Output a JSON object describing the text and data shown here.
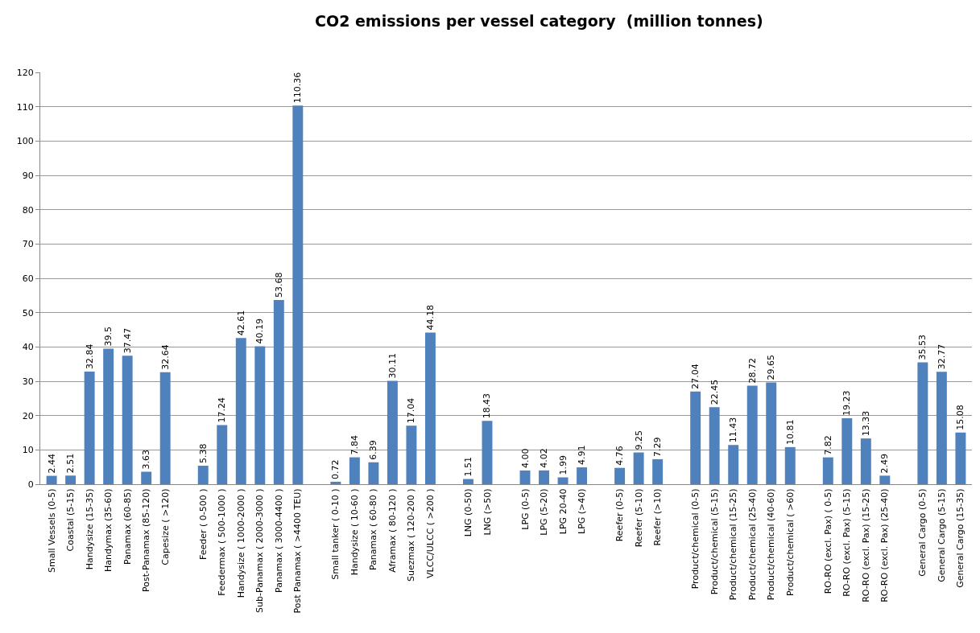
{
  "chart_data": {
    "type": "bar",
    "title": "CO2 emissions per vessel category  (million tonnes)",
    "categories": [
      "Small Vessels (0-5)",
      "Coastal (5-15)",
      "Handysize (15-35)",
      "Handymax (35-60)",
      "Panamax (60-85)",
      "Post-Panamax (85-120)",
      "Capesize ( >120)",
      null,
      "Feeder ( 0-500 )",
      "Feedermax ( 500-1000 )",
      "Handysize ( 1000-2000 )",
      "Sub-Panamax ( 2000-3000 )",
      "Panamax ( 3000-4400 )",
      "Post Panamax ( >4400 TEU)",
      null,
      "Small tanker ( 0-10 )",
      "Handysize ( 10-60 )",
      "Panamax ( 60-80 )",
      "Aframax ( 80-120 )",
      "Suezmax ( 120-200 )",
      "VLCC/ULCC ( >200 )",
      null,
      "LNG (0-50)",
      "LNG (>50)",
      null,
      "LPG (0-5)",
      "LPG (5-20)",
      "LPG 20-40",
      "LPG (>40)",
      null,
      "Reefer (0-5)",
      "Reefer (5-10)",
      "Reefer (>10)",
      null,
      "Product/chemical (0-5)",
      "Product/chemical (5-15)",
      "Product/chemical (15-25)",
      "Product/chemical (25-40)",
      "Product/chemical (40-60)",
      "Product/chemical ( >60)",
      null,
      "RO-RO (excl. Pax) ( 0-5)",
      "RO-RO (excl. Pax) (5-15)",
      "RO-RO (excl. Pax) (15-25)",
      "RO-RO (excl. Pax) (25-40)",
      null,
      "General Cargo (0-5)",
      "General Cargo (5-15)",
      "General Cargo (15-35)"
    ],
    "values": [
      2.44,
      2.51,
      32.84,
      39.5,
      37.47,
      3.63,
      32.64,
      null,
      5.38,
      17.24,
      42.61,
      40.19,
      53.68,
      110.36,
      null,
      0.72,
      7.84,
      6.39,
      30.11,
      17.04,
      44.18,
      null,
      1.51,
      18.43,
      null,
      4.0,
      4.02,
      1.99,
      4.91,
      null,
      4.76,
      9.25,
      7.29,
      null,
      27.04,
      22.45,
      11.43,
      28.72,
      29.65,
      10.81,
      null,
      7.82,
      19.23,
      13.33,
      2.49,
      null,
      35.53,
      32.77,
      15.08
    ],
    "value_labels": [
      "2.44",
      "2.51",
      "32.84",
      "39.5",
      "37.47",
      "3.63",
      "32.64",
      null,
      "5.38",
      "17.24",
      "42.61",
      "40.19",
      "53.68",
      "110.36",
      null,
      "0.72",
      "7.84",
      "6.39",
      "30.11",
      "17.04",
      "44.18",
      null,
      "1.51",
      "18.43",
      null,
      "4.00",
      "4.02",
      "1.99",
      "4.91",
      null,
      "4.76",
      "9.25",
      "7.29",
      null,
      "27.04",
      "22.45",
      "11.43",
      "28.72",
      "29.65",
      "10.81",
      null,
      "7.82",
      "19.23",
      "13.33",
      "2.49",
      null,
      "35.53",
      "32.77",
      "15.08"
    ],
    "color": "#4f81bd",
    "ylim": [
      0,
      120
    ],
    "yticks": [
      0,
      10,
      20,
      30,
      40,
      50,
      60,
      70,
      80,
      90,
      100,
      110,
      120
    ],
    "grid": "y"
  }
}
